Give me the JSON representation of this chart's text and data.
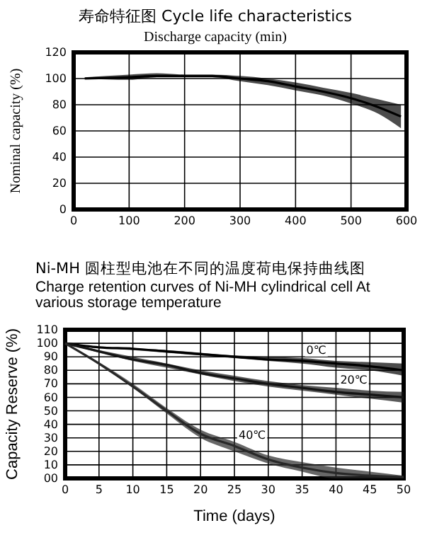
{
  "chart_data": [
    {
      "type": "line",
      "title": "寿命特征图 Cycle life characteristics",
      "xlabel": "Discharge capacity (min)",
      "ylabel": "Nominal capacity (%)",
      "xlim": [
        0,
        600
      ],
      "ylim": [
        0,
        120
      ],
      "xticks": [
        0,
        100,
        200,
        300,
        400,
        500,
        600
      ],
      "yticks": [
        0,
        20,
        40,
        60,
        80,
        100,
        120
      ],
      "grid": true,
      "x": [
        20,
        100,
        150,
        200,
        250,
        300,
        350,
        400,
        450,
        500,
        550,
        590
      ],
      "series": [
        {
          "color": "#000000",
          "values": [
            100,
            101,
            102,
            102,
            102,
            100,
            98,
            94,
            90,
            85,
            78,
            71
          ],
          "lower": [
            100,
            99,
            101,
            101,
            101,
            98,
            95,
            91,
            87,
            81,
            73,
            62
          ],
          "upper": [
            101,
            103,
            104,
            103,
            103,
            102,
            100,
            97,
            93,
            89,
            84,
            80
          ]
        }
      ]
    },
    {
      "type": "line",
      "title": "Ni-MH 圆柱型电池在不同的温度荷电保持曲线图",
      "subtitle": "Charge retention curves of Ni-MH cylindrical cell At various storage temperature",
      "xlabel": "Time (days)",
      "ylabel": "Capacity Reserve (%)",
      "xlim": [
        0,
        50
      ],
      "ylim": [
        0,
        110
      ],
      "xticks": [
        0,
        5,
        10,
        15,
        20,
        25,
        30,
        35,
        40,
        45,
        50
      ],
      "yticks": [
        {
          "value": 0,
          "label": "00"
        },
        10,
        20,
        30,
        40,
        50,
        60,
        70,
        80,
        90,
        100,
        110
      ],
      "grid": true,
      "x": [
        0,
        5,
        10,
        15,
        20,
        25,
        30,
        35,
        40,
        45,
        50
      ],
      "series": [
        {
          "color": "#000000",
          "values": [
            100,
            97,
            96,
            94,
            92,
            90,
            88,
            87,
            85,
            83,
            80
          ],
          "lower": [
            100,
            96.5,
            95,
            93,
            91,
            89,
            87,
            85,
            82,
            80,
            76
          ],
          "upper": [
            100,
            97.5,
            96,
            95,
            93,
            91,
            90,
            89,
            87,
            86,
            85
          ]
        },
        {
          "color": "#141414",
          "values": [
            100,
            94,
            88,
            84,
            78,
            74,
            70,
            67,
            64,
            62,
            60
          ],
          "lower": [
            100,
            93,
            87,
            82,
            77,
            72,
            68,
            65,
            62,
            59,
            56
          ],
          "upper": [
            100,
            95,
            90,
            85,
            80,
            76,
            72,
            69,
            67,
            65,
            64
          ]
        },
        {
          "color": "#282828",
          "values": [
            100,
            85,
            68,
            50,
            33,
            24,
            14,
            8,
            4,
            2,
            1
          ],
          "lower": [
            100,
            84,
            67,
            48,
            30,
            20,
            11,
            5,
            0,
            0,
            0
          ],
          "upper": [
            100,
            86,
            70,
            52,
            36,
            27,
            17,
            12,
            8,
            5,
            2
          ]
        }
      ],
      "annotations": [
        {
          "text": "0℃",
          "x": 35,
          "y": 87
        },
        {
          "text": "20℃",
          "x": 40,
          "y": 65
        },
        {
          "text": "40℃",
          "x": 25,
          "y": 24
        }
      ]
    }
  ]
}
